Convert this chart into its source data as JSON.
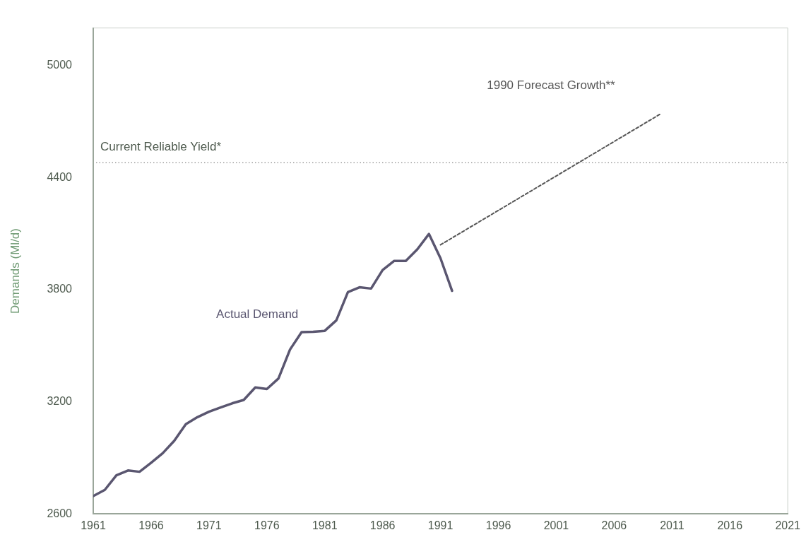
{
  "chart_data": {
    "type": "line",
    "ylabel": "Demands (Ml/d)",
    "xlim": [
      1961,
      2021
    ],
    "xticks": [
      1961,
      1966,
      1971,
      1976,
      1981,
      1986,
      1991,
      1996,
      2001,
      2006,
      2011,
      2016,
      2021
    ],
    "ylim": [
      2600,
      5200
    ],
    "yticks": [
      2600,
      3200,
      3800,
      4400,
      5000
    ],
    "grid": false,
    "legend": false,
    "marker": "none",
    "series": [
      {
        "name": "Actual Demand",
        "color": "#5a5670",
        "line_style": "solid",
        "x": [
          1961,
          1962,
          1963,
          1964,
          1965,
          1966,
          1967,
          1968,
          1969,
          1970,
          1971,
          1972,
          1973,
          1974,
          1975,
          1976,
          1977,
          1978,
          1979,
          1980,
          1981,
          1982,
          1983,
          1984,
          1985,
          1986,
          1987,
          1988,
          1989,
          1990,
          1991,
          1992
        ],
        "values": [
          2696,
          2729,
          2807,
          2833,
          2826,
          2874,
          2925,
          2992,
          3081,
          3118,
          3147,
          3170,
          3192,
          3210,
          3277,
          3269,
          3325,
          3480,
          3573,
          3575,
          3580,
          3636,
          3787,
          3813,
          3806,
          3905,
          3954,
          3954,
          4016,
          4098,
          3968,
          3794
        ]
      },
      {
        "name": "1990 Forecast Growth**",
        "color": "#555555",
        "line_style": "dashed",
        "x": [
          1991,
          2010
        ],
        "values": [
          4040,
          4740
        ]
      }
    ],
    "ref_lines": [
      {
        "axis": "y",
        "value": 4480,
        "label": "Current Reliable Yield*",
        "color": "#8a8a8a",
        "line_style": "dotted"
      }
    ]
  }
}
